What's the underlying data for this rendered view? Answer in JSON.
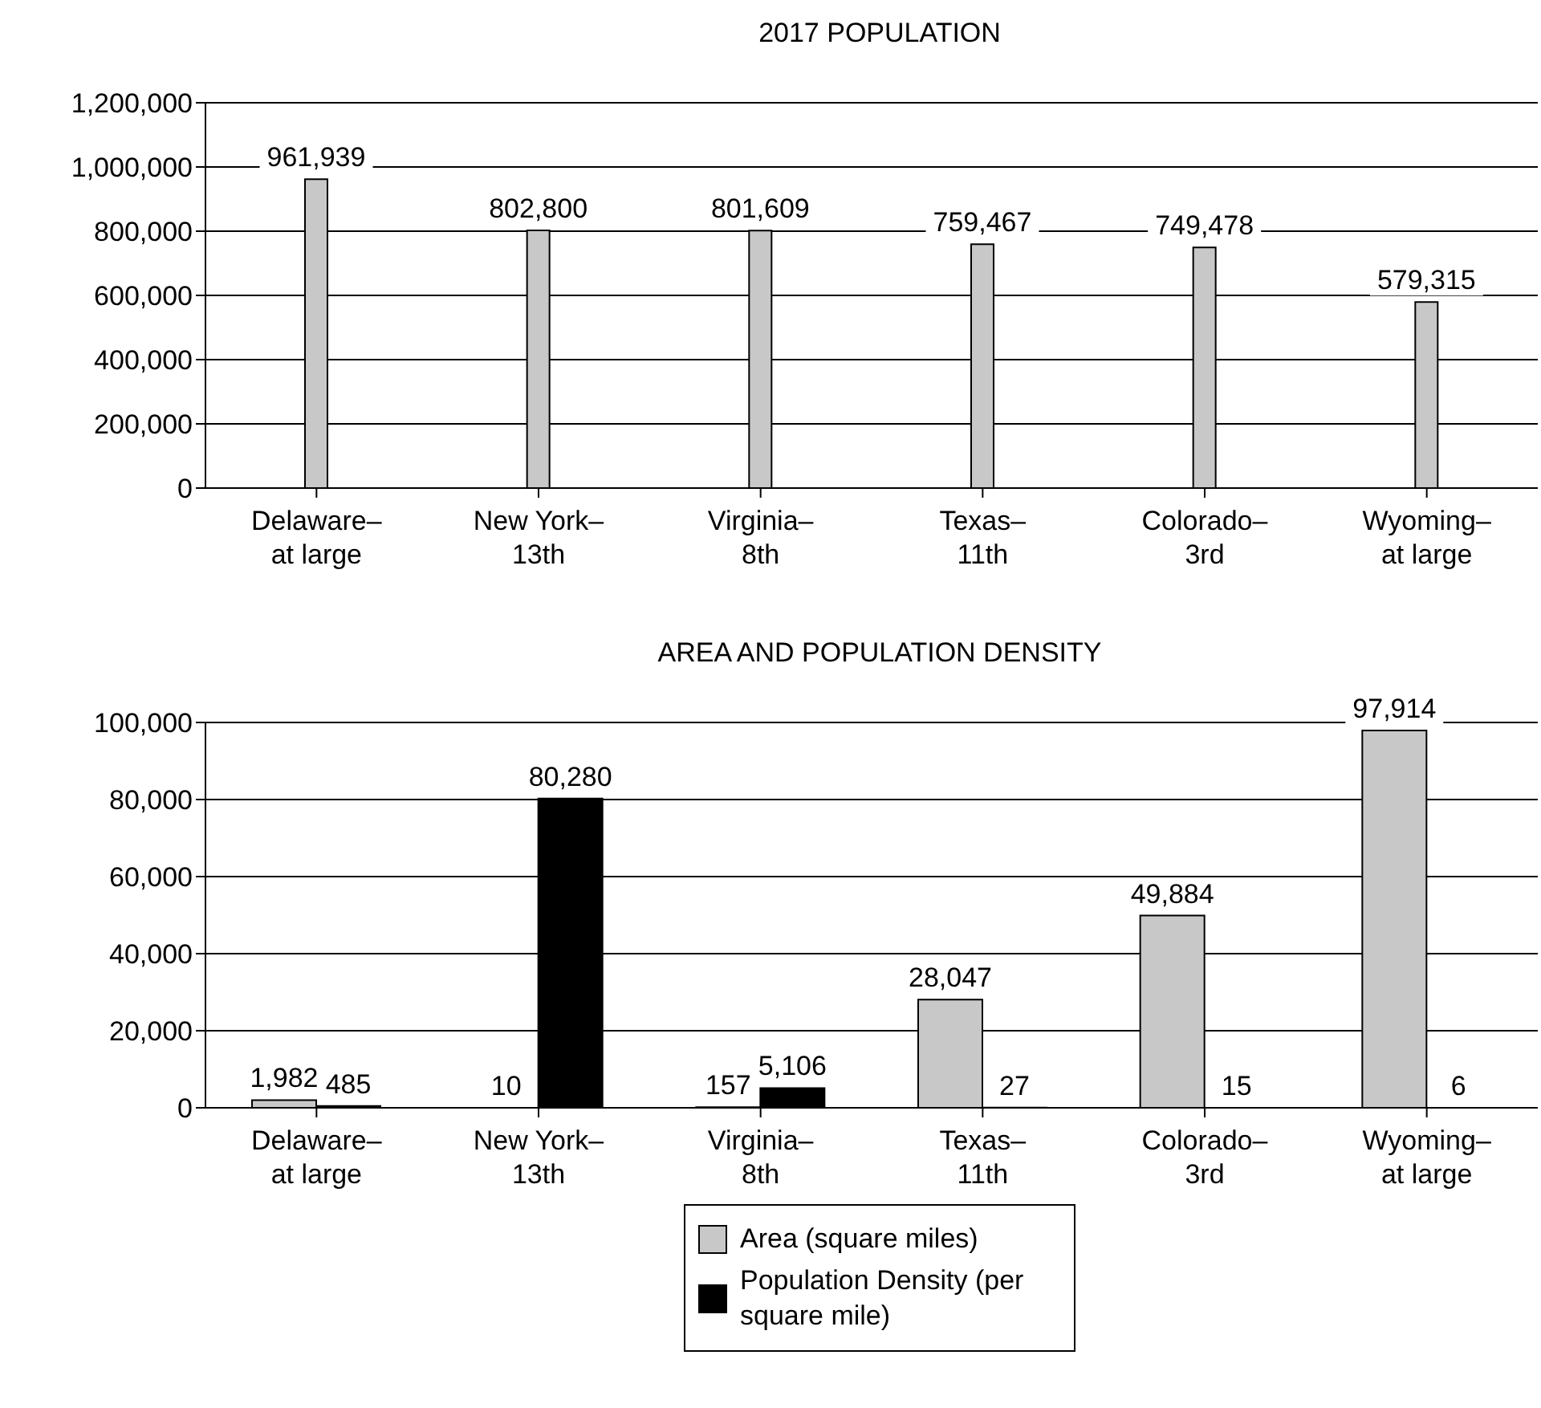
{
  "chart_data": [
    {
      "type": "bar",
      "title": "2017 POPULATION",
      "categories": [
        "Delaware–at large",
        "New York–13th",
        "Virginia–8th",
        "Texas–11th",
        "Colorado–3rd",
        "Wyoming–at large"
      ],
      "values": [
        961939,
        802800,
        801609,
        759467,
        749478,
        579315
      ],
      "value_labels": [
        "961,939",
        "802,800",
        "801,609",
        "759,467",
        "749,478",
        "579,315"
      ],
      "color": "#c8c8c8",
      "ylim": [
        0,
        1200000
      ],
      "yticks": [
        0,
        {
          "value": 200000,
          "label": "200,000"
        },
        {
          "value": 400000,
          "label": "400,000"
        },
        {
          "value": 600000,
          "label": "600,000"
        },
        {
          "value": 800000,
          "label": "800,000"
        },
        {
          "value": 1000000,
          "label": "1,000,000"
        },
        {
          "value": 1200000,
          "label": "1,200,000"
        }
      ],
      "grid": "y"
    },
    {
      "type": "bar",
      "title": "AREA AND POPULATION DENSITY",
      "categories": [
        "Delaware–at large",
        "New York–13th",
        "Virginia–8th",
        "Texas–11th",
        "Colorado–3rd",
        "Wyoming–at large"
      ],
      "series": [
        {
          "name": "Area (square miles)",
          "color": "#c8c8c8",
          "values": [
            1982,
            10,
            157,
            28047,
            49884,
            97914
          ],
          "value_labels": [
            "1,982",
            "10",
            "157",
            "28,047",
            "49,884",
            "97,914"
          ]
        },
        {
          "name": "Population Density (per square mile)",
          "color": "#000000",
          "values": [
            485,
            80280,
            5106,
            27,
            15,
            6
          ],
          "value_labels": [
            "485",
            "80,280",
            "5,106",
            "27",
            "15",
            "6"
          ]
        }
      ],
      "ylim": [
        0,
        100000
      ],
      "yticks": [
        0,
        {
          "value": 20000,
          "label": "20,000"
        },
        {
          "value": 40000,
          "label": "40,000"
        },
        {
          "value": 60000,
          "label": "60,000"
        },
        {
          "value": 80000,
          "label": "80,000"
        },
        {
          "value": 100000,
          "label": "100,000"
        }
      ],
      "grid": "y",
      "legend": "bottom"
    }
  ]
}
